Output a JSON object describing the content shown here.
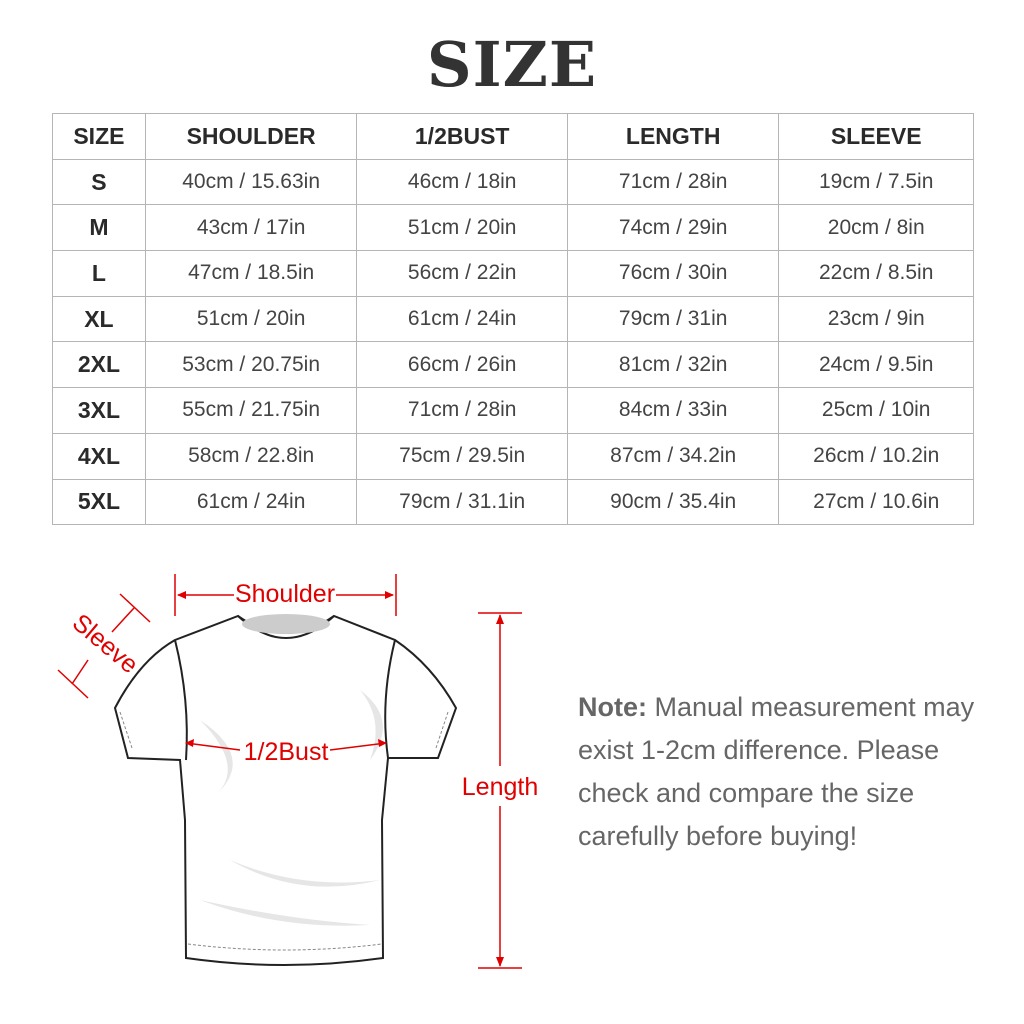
{
  "title": "SIZE",
  "table": {
    "headers": [
      "SIZE",
      "SHOULDER",
      "1/2BUST",
      "LENGTH",
      "SLEEVE"
    ],
    "rows": [
      [
        "S",
        "40cm / 15.63in",
        "46cm / 18in",
        "71cm / 28in",
        "19cm / 7.5in"
      ],
      [
        "M",
        "43cm / 17in",
        "51cm / 20in",
        "74cm / 29in",
        "20cm / 8in"
      ],
      [
        "L",
        "47cm / 18.5in",
        "56cm / 22in",
        "76cm / 30in",
        "22cm / 8.5in"
      ],
      [
        "XL",
        "51cm / 20in",
        "61cm / 24in",
        "79cm / 31in",
        "23cm / 9in"
      ],
      [
        "2XL",
        "53cm / 20.75in",
        "66cm / 26in",
        "81cm / 32in",
        "24cm / 9.5in"
      ],
      [
        "3XL",
        "55cm / 21.75in",
        "71cm / 28in",
        "84cm / 33in",
        "25cm / 10in"
      ],
      [
        "4XL",
        "58cm / 22.8in",
        "75cm / 29.5in",
        "87cm / 34.2in",
        "26cm / 10.2in"
      ],
      [
        "5XL",
        "61cm / 24in",
        "79cm / 31.1in",
        "90cm / 35.4in",
        "27cm / 10.6in"
      ]
    ]
  },
  "diagram": {
    "shoulder_label": "Shoulder",
    "sleeve_label": "Sleeve",
    "bust_label": "1/2Bust",
    "length_label": "Length",
    "accent_color": "#e00000"
  },
  "note": {
    "label": "Note:",
    "text": "Manual measurement may exist 1-2cm difference. Please check and compare the size carefully before buying!"
  }
}
